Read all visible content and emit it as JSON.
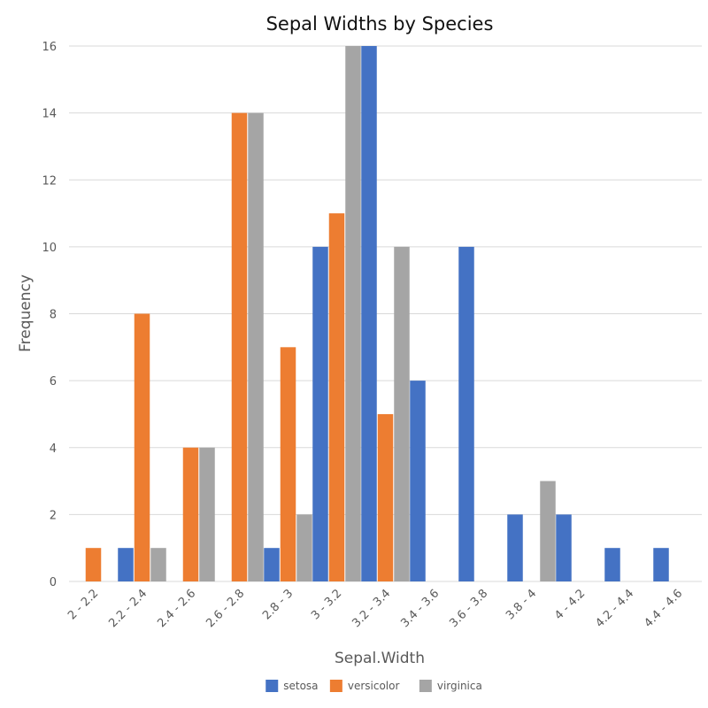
{
  "chart_data": {
    "type": "bar",
    "title": "Sepal Widths by Species",
    "xlabel": "Sepal.Width",
    "ylabel": "Frequency",
    "ylim": [
      0,
      16
    ],
    "yticks": [
      0,
      2,
      4,
      6,
      8,
      10,
      12,
      14,
      16
    ],
    "grid": true,
    "legend_position": "bottom",
    "categories": [
      "2 - 2.2",
      "2.2 - 2.4",
      "2.4 - 2.6",
      "2.6 - 2.8",
      "2.8 - 3",
      "3 - 3.2",
      "3.2 - 3.4",
      "3.4 - 3.6",
      "3.6 - 3.8",
      "3.8 - 4",
      "4 - 4.2",
      "4.2 - 4.4",
      "4.4 - 4.6"
    ],
    "series": [
      {
        "name": "setosa",
        "color": "#4472c4",
        "values": [
          0,
          1,
          0,
          0,
          1,
          10,
          16,
          6,
          10,
          2,
          2,
          1,
          1
        ]
      },
      {
        "name": "versicolor",
        "color": "#ed7d31",
        "values": [
          1,
          8,
          4,
          14,
          7,
          11,
          5,
          0,
          0,
          0,
          0,
          0,
          0
        ]
      },
      {
        "name": "virginica",
        "color": "#a5a5a5",
        "values": [
          0,
          1,
          4,
          14,
          2,
          16,
          10,
          0,
          0,
          3,
          0,
          0,
          0
        ]
      }
    ]
  }
}
